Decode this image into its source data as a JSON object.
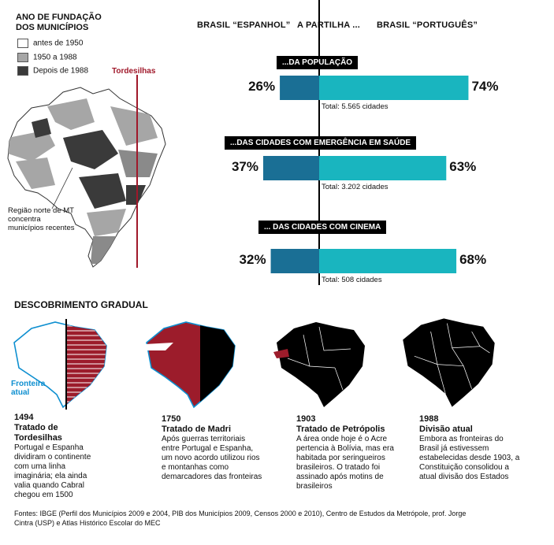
{
  "legend": {
    "title": "ANO DE FUNDAÇÃO DOS MUNICÍPIOS",
    "items": [
      {
        "label": "antes de 1950",
        "color": "#ffffff"
      },
      {
        "label": "1950 a 1988",
        "color": "#a6a6a6"
      },
      {
        "label": "Depois de 1988",
        "color": "#3a3a3a"
      }
    ]
  },
  "map": {
    "tordesilhas_label": "Tordesilhas",
    "tordesilhas_color": "#a0182a",
    "note": "Região norte de MT concentra municípios recentes"
  },
  "header": {
    "left": "BRASIL “ESPANHOL”",
    "center": "A PARTILHA ...",
    "right": "BRASIL “PORTUGUÊS”"
  },
  "colors": {
    "espanhol": "#1a6f95",
    "portugues": "#19b5bf",
    "territorio": "#9c1c2b"
  },
  "chart_data": {
    "type": "bar",
    "categories": [
      "...DA POPULAÇÃO",
      "...DAS CIDADES COM EMERGÊNCIA EM SAÚDE",
      "... DAS CIDADES COM CINEMA"
    ],
    "series": [
      {
        "name": "BRASIL “ESPANHOL”",
        "values": [
          26,
          37,
          32
        ]
      },
      {
        "name": "BRASIL “PORTUGUÊS”",
        "values": [
          74,
          63,
          68
        ]
      }
    ],
    "value_labels": [
      [
        "26%",
        "74%"
      ],
      [
        "37%",
        "63%"
      ],
      [
        "32%",
        "68%"
      ]
    ],
    "totals": [
      "Total: 5.565 cidades",
      "Total: 3.202 cidades",
      "Total: 508 cidades"
    ]
  },
  "timeline": {
    "title": "DESCOBRIMENTO GRADUAL",
    "fronteira_label": "Fronteira atual",
    "items": [
      {
        "year": "1494",
        "event": "Tratado de Tordesilhas",
        "desc": "Portugal e Espanha dividiram o continente com uma linha imaginária; ela ainda valia quando Cabral chegou em 1500"
      },
      {
        "year": "1750",
        "event": "Tratado de Madri",
        "desc": "Após guerras territoriais entre Portugal e Espanha, um novo acordo utilizou rios e montanhas como demarcadores das fronteiras"
      },
      {
        "year": "1903",
        "event": "Tratado de Petrópolis",
        "desc": "A área onde hoje é o Acre pertencia à Bolívia, mas era habitada por seringueiros brasileiros. O tratado foi assinado após motins de brasileiros"
      },
      {
        "year": "1988",
        "event": "Divisão atual",
        "desc": "Embora as fronteiras do Brasil já estivessem estabelecidas desde 1903, a Constituição consolidou a atual divisão dos Estados"
      }
    ]
  },
  "sources": "Fontes: IBGE (Perfil dos Municípios 2009 e 2004, PIB dos Municípios 2009, Censos 2000 e 2010), Centro de Estudos da Metrópole, prof. Jorge Cintra (USP) e Atlas Histórico Escolar do MEC"
}
